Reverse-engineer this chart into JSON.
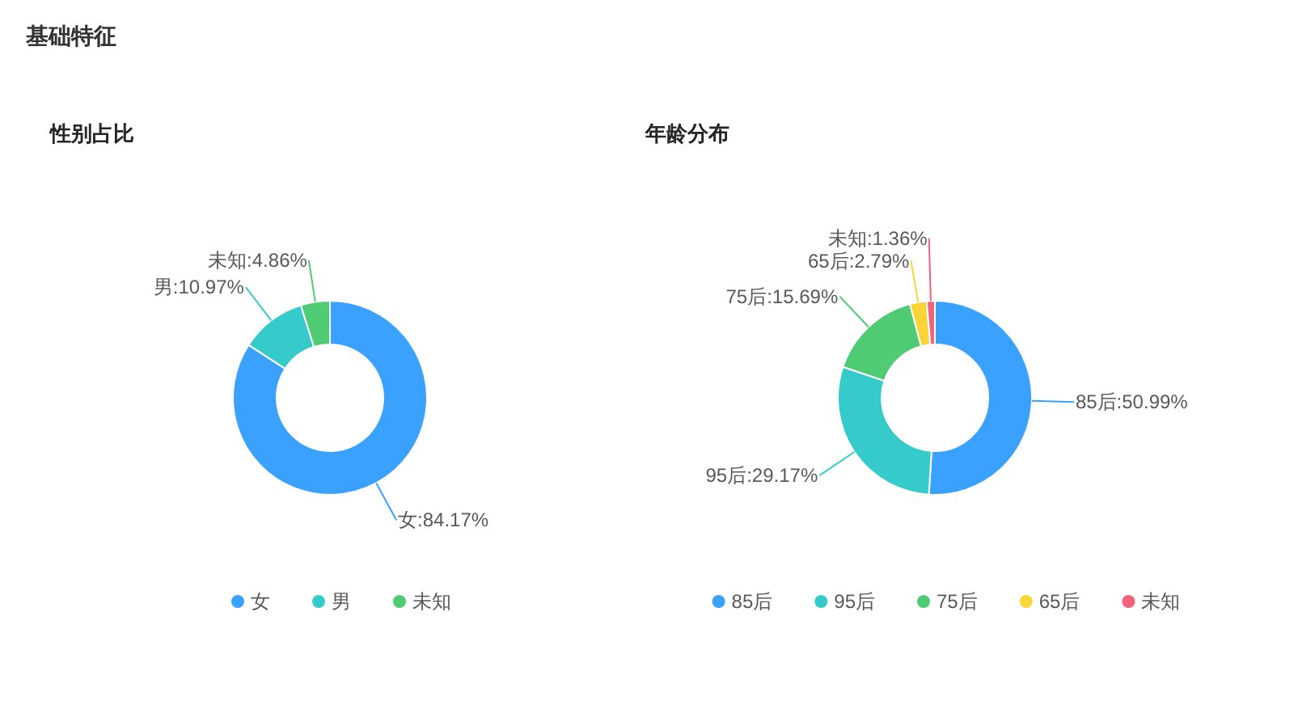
{
  "chart_data": [
    {
      "type": "other",
      "title": "基础特征"
    },
    {
      "type": "donut",
      "title": "性别占比",
      "categories": [
        "女",
        "男",
        "未知"
      ],
      "values": [
        84.17,
        10.97,
        4.86
      ],
      "colors": [
        "#3aa1ff",
        "#36cbcb",
        "#4ecb73"
      ],
      "value_labels": [
        "女:84.17%",
        "男:10.97%",
        "未知:4.86%"
      ],
      "legend": "bottom"
    },
    {
      "type": "donut",
      "title": "年龄分布",
      "categories": [
        "85后",
        "95后",
        "75后",
        "65后",
        "未知"
      ],
      "values": [
        50.99,
        29.17,
        15.69,
        2.79,
        1.36
      ],
      "colors": [
        "#3aa1ff",
        "#36cbcb",
        "#4ecb73",
        "#fbd437",
        "#f2637b"
      ],
      "value_labels": [
        "85后:50.99%",
        "95后:29.17%",
        "75后:15.69%",
        "65后:2.79%",
        "未知:1.36%"
      ],
      "legend": "bottom"
    }
  ]
}
